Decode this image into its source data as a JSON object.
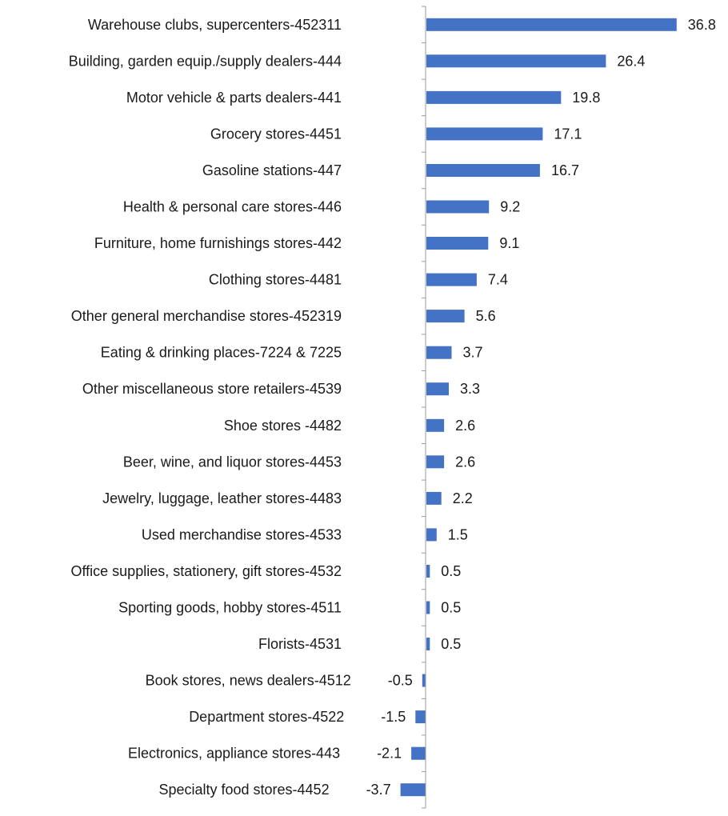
{
  "chart_data": {
    "type": "bar",
    "orientation": "horizontal",
    "title": "",
    "xlabel": "",
    "ylabel": "",
    "grid": false,
    "legend": "none",
    "bar_color": "#4472C4",
    "categories": [
      "Warehouse clubs, supercenters-452311",
      "Building, garden equip./supply dealers-444",
      "Motor vehicle & parts dealers-441",
      "Grocery stores-4451",
      "Gasoline stations-447",
      "Health & personal care stores-446",
      "Furniture, home furnishings stores-442",
      "Clothing stores-4481",
      "Other general merchandise stores-452319",
      "Eating & drinking places-7224 & 7225",
      "Other miscellaneous store retailers-4539",
      "Shoe stores -4482",
      "Beer, wine, and liquor stores-4453",
      "Jewelry, luggage, leather stores-4483",
      "Used merchandise stores-4533",
      "Office supplies, stationery, gift stores-4532",
      "Sporting goods, hobby stores-4511",
      "Florists-4531",
      "Book stores, news dealers-4512",
      "Department stores-4522",
      "Electronics, appliance stores-443",
      "Specialty food stores-4452"
    ],
    "values": [
      36.8,
      26.4,
      19.8,
      17.1,
      16.7,
      9.2,
      9.1,
      7.4,
      5.6,
      3.7,
      3.3,
      2.6,
      2.6,
      2.2,
      1.5,
      0.5,
      0.5,
      0.5,
      -0.5,
      -1.5,
      -2.1,
      -3.7
    ],
    "value_labels": [
      "36.8",
      "26.4",
      "19.8",
      "17.1",
      "16.7",
      "9.2",
      "9.1",
      "7.4",
      "5.6",
      "3.7",
      "3.3",
      "2.6",
      "2.6",
      "2.2",
      "1.5",
      "0.5",
      "0.5",
      "0.5",
      "-0.5",
      "-1.5",
      "-2.1",
      "-3.7"
    ]
  }
}
